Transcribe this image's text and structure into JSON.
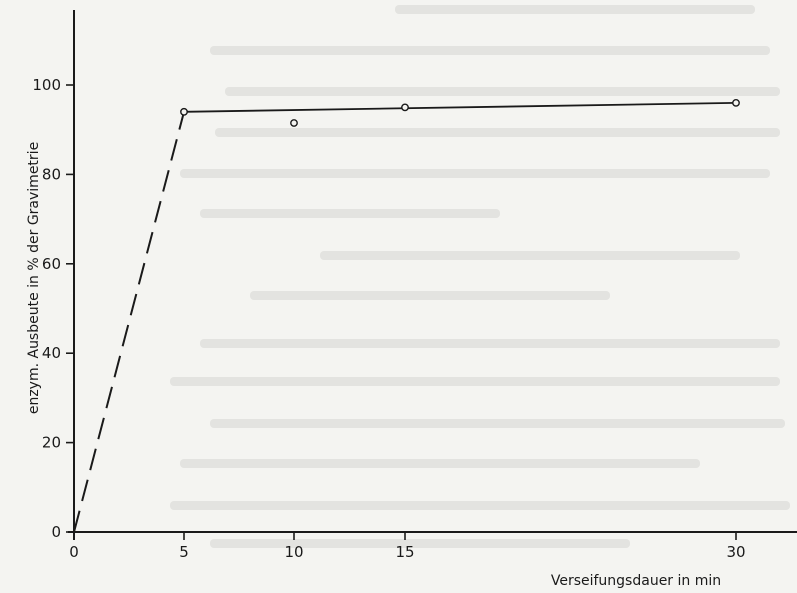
{
  "chart_data": {
    "type": "line",
    "title": "",
    "xlabel": "Verseifungsdauer in min",
    "ylabel": "enzym. Ausbeute in % der Gravimetrie",
    "x_tick_labels": [
      "0",
      "5",
      "10",
      "15",
      "30"
    ],
    "y_tick_labels": [
      "0",
      "20",
      "40",
      "60",
      "80",
      "100"
    ],
    "x_ticks": [
      0,
      5,
      10,
      15,
      30
    ],
    "y_ticks": [
      0,
      20,
      40,
      60,
      80,
      100
    ],
    "ylim": [
      0,
      117
    ],
    "x_axis_note": "x axis is not linear: 15 to 30 min is drawn at the same spacing as 10 to 15 min",
    "grid": false,
    "legend": "none",
    "points": {
      "x": [
        5,
        10,
        15,
        30
      ],
      "y": [
        94,
        91.5,
        95,
        96
      ],
      "marker": "open-circle"
    },
    "dashed_line": {
      "x": [
        0,
        5
      ],
      "y": [
        0,
        94
      ]
    },
    "solid_line": {
      "x": [
        5,
        30
      ],
      "y": [
        94,
        96
      ]
    },
    "line_color": "#1a1a1a"
  }
}
